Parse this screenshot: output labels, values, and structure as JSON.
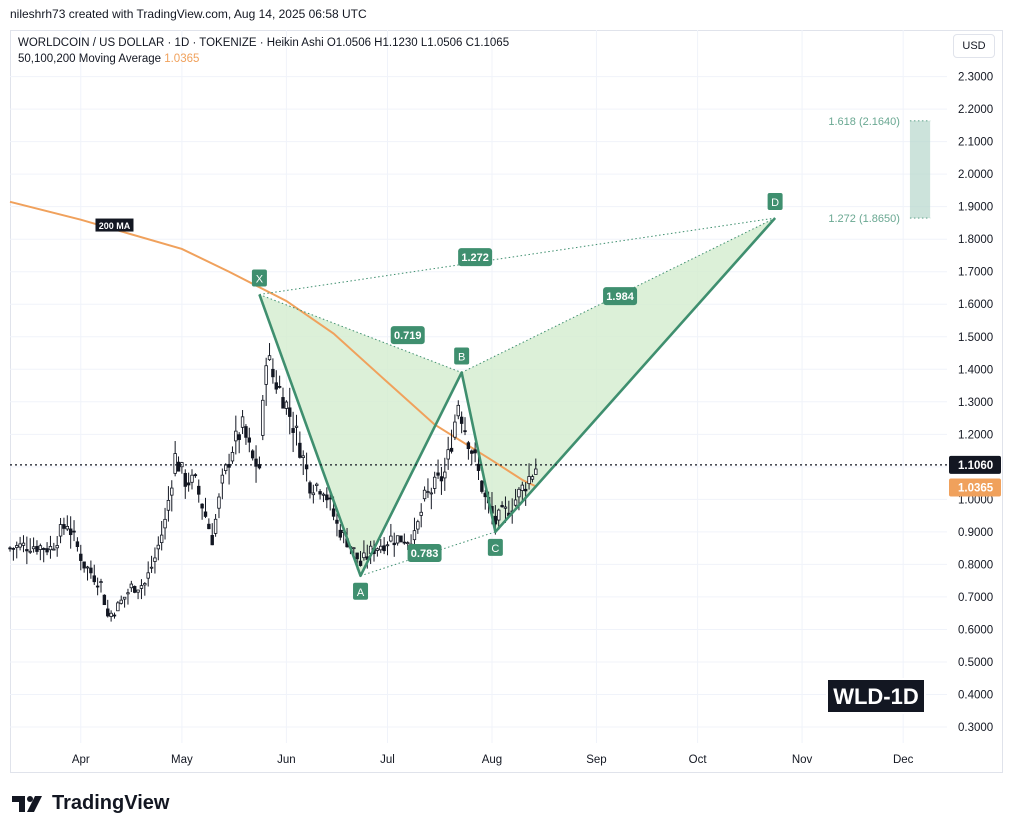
{
  "header": {
    "caption": "nileshrh73 created with TradingView.com, Aug 14, 2025 06:58 UTC"
  },
  "legend": {
    "symbol_line": "WORLDCOIN / US DOLLAR · 1D · TOKENIZE · Heikin Ashi  O1.0506  H1.1230  L1.0506  C1.1065",
    "ma_label": "50,100,200 Moving Average",
    "ma_value": "1.0365"
  },
  "currency_button": "USD",
  "ticker_badge": "WLD-1D",
  "brand": "TradingView",
  "chart_data": {
    "type": "candlestick",
    "y_axis": {
      "ticks": [
        "0.3000",
        "0.4000",
        "0.5000",
        "0.6000",
        "0.7000",
        "0.8000",
        "0.9000",
        "1.0000",
        "1.1000",
        "1.2000",
        "1.3000",
        "1.4000",
        "1.5000",
        "1.6000",
        "1.7000",
        "1.8000",
        "1.9000",
        "2.0000",
        "2.1000",
        "2.2000",
        "2.3000"
      ],
      "range": [
        0.256,
        2.37
      ]
    },
    "x_axis": {
      "ticks": [
        {
          "label": "Apr",
          "date": "2025-04-01"
        },
        {
          "label": "May",
          "date": "2025-05-01"
        },
        {
          "label": "Jun",
          "date": "2025-06-01"
        },
        {
          "label": "Jul",
          "date": "2025-07-01"
        },
        {
          "label": "Aug",
          "date": "2025-08-01"
        },
        {
          "label": "Sep",
          "date": "2025-09-01"
        },
        {
          "label": "Oct",
          "date": "2025-10-01"
        },
        {
          "label": "Nov",
          "date": "2025-11-01"
        },
        {
          "label": "Dec",
          "date": "2025-12-01"
        }
      ],
      "range": [
        "2025-03-11",
        "2025-12-14"
      ]
    },
    "price_anchors": [
      [
        "2025-03-11",
        0.85
      ],
      [
        "2025-03-17",
        0.86
      ],
      [
        "2025-03-23",
        0.85
      ],
      [
        "2025-03-28",
        0.93
      ],
      [
        "2025-04-02",
        0.8
      ],
      [
        "2025-04-07",
        0.74
      ],
      [
        "2025-04-09",
        0.64
      ],
      [
        "2025-04-12",
        0.67
      ],
      [
        "2025-04-16",
        0.73
      ],
      [
        "2025-04-20",
        0.74
      ],
      [
        "2025-04-23",
        0.82
      ],
      [
        "2025-04-26",
        0.93
      ],
      [
        "2025-04-29",
        1.13
      ],
      [
        "2025-05-02",
        1.06
      ],
      [
        "2025-05-05",
        1.05
      ],
      [
        "2025-05-08",
        0.95
      ],
      [
        "2025-05-10",
        0.88
      ],
      [
        "2025-05-13",
        1.05
      ],
      [
        "2025-05-16",
        1.16
      ],
      [
        "2025-05-19",
        1.22
      ],
      [
        "2025-05-22",
        1.12
      ],
      [
        "2025-05-24",
        1.1
      ],
      [
        "2025-05-26",
        1.45
      ],
      [
        "2025-05-28",
        1.38
      ],
      [
        "2025-05-31",
        1.32
      ],
      [
        "2025-06-04",
        1.2
      ],
      [
        "2025-06-08",
        1.05
      ],
      [
        "2025-06-12",
        1.04
      ],
      [
        "2025-06-16",
        0.92
      ],
      [
        "2025-06-20",
        0.86
      ],
      [
        "2025-06-23",
        0.8
      ],
      [
        "2025-06-27",
        0.85
      ],
      [
        "2025-07-02",
        0.88
      ],
      [
        "2025-07-06",
        0.88
      ],
      [
        "2025-07-09",
        0.88
      ],
      [
        "2025-07-12",
        1.0
      ],
      [
        "2025-07-15",
        1.04
      ],
      [
        "2025-07-18",
        1.08
      ],
      [
        "2025-07-20",
        1.18
      ],
      [
        "2025-07-22",
        1.3
      ],
      [
        "2025-07-24",
        1.22
      ],
      [
        "2025-07-27",
        1.12
      ],
      [
        "2025-07-30",
        1.0
      ],
      [
        "2025-08-02",
        0.93
      ],
      [
        "2025-08-05",
        0.96
      ],
      [
        "2025-08-08",
        1.0
      ],
      [
        "2025-08-11",
        1.05
      ],
      [
        "2025-08-14",
        1.1
      ]
    ],
    "moving_average": {
      "name": "200 MA",
      "color": "#f0a15c",
      "points": [
        [
          "2025-03-11",
          1.915
        ],
        [
          "2025-04-01",
          1.86
        ],
        [
          "2025-05-01",
          1.77
        ],
        [
          "2025-05-15",
          1.7
        ],
        [
          "2025-06-01",
          1.61
        ],
        [
          "2025-06-15",
          1.51
        ],
        [
          "2025-07-01",
          1.36
        ],
        [
          "2025-07-15",
          1.23
        ],
        [
          "2025-08-01",
          1.12
        ],
        [
          "2025-08-10",
          1.06
        ],
        [
          "2025-08-14",
          1.04
        ]
      ]
    },
    "current_price": {
      "label": "1.1060",
      "value": 1.106,
      "color": "#131722"
    },
    "ma_price_tag": {
      "label": "1.0365",
      "value": 1.0365,
      "color": "#f0a15c"
    },
    "harmonic_pattern": {
      "points": [
        {
          "label": "X",
          "date": "2025-05-24",
          "price": 1.63
        },
        {
          "label": "A",
          "date": "2025-06-23",
          "price": 0.765
        },
        {
          "label": "B",
          "date": "2025-07-23",
          "price": 1.39
        },
        {
          "label": "C",
          "date": "2025-08-02",
          "price": 0.9
        },
        {
          "label": "D",
          "date": "2025-10-24",
          "price": 1.865
        }
      ],
      "ratios": [
        {
          "label": "0.719",
          "date": "2025-07-07",
          "price": 1.505
        },
        {
          "label": "0.783",
          "date": "2025-07-12",
          "price": 0.835
        },
        {
          "label": "1.272",
          "date": "2025-07-27",
          "price": 1.745
        },
        {
          "label": "1.984",
          "date": "2025-09-08",
          "price": 1.625
        }
      ],
      "color": "#3f8f6f",
      "fill": "#d3ecce"
    },
    "target_zone": {
      "upper": {
        "label": "1.618 (2.1640)",
        "value": 2.164
      },
      "lower": {
        "label": "1.272 (1.8650)",
        "value": 1.865
      },
      "start_date": "2025-12-03",
      "end_date": "2025-12-09",
      "color": "#6aa892"
    }
  }
}
